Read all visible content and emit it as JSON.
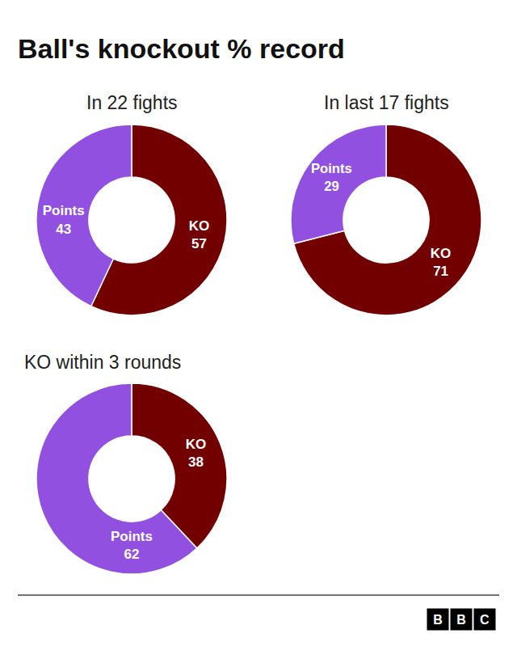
{
  "title": "Ball's knockout % record",
  "chart_data": [
    {
      "type": "pie",
      "title": "In 22 fights",
      "categories": [
        "KO",
        "Points"
      ],
      "values": [
        57,
        43
      ],
      "colors": [
        "#730000",
        "#9150e0"
      ],
      "data_labels": true
    },
    {
      "type": "pie",
      "title": "In last 17 fights",
      "categories": [
        "KO",
        "Points"
      ],
      "values": [
        71,
        29
      ],
      "colors": [
        "#730000",
        "#9150e0"
      ],
      "data_labels": true
    },
    {
      "type": "pie",
      "title": "KO within 3 rounds",
      "categories": [
        "KO",
        "Points"
      ],
      "values": [
        38,
        62
      ],
      "colors": [
        "#730000",
        "#9150e0"
      ],
      "data_labels": true
    }
  ],
  "footer": "BBC"
}
